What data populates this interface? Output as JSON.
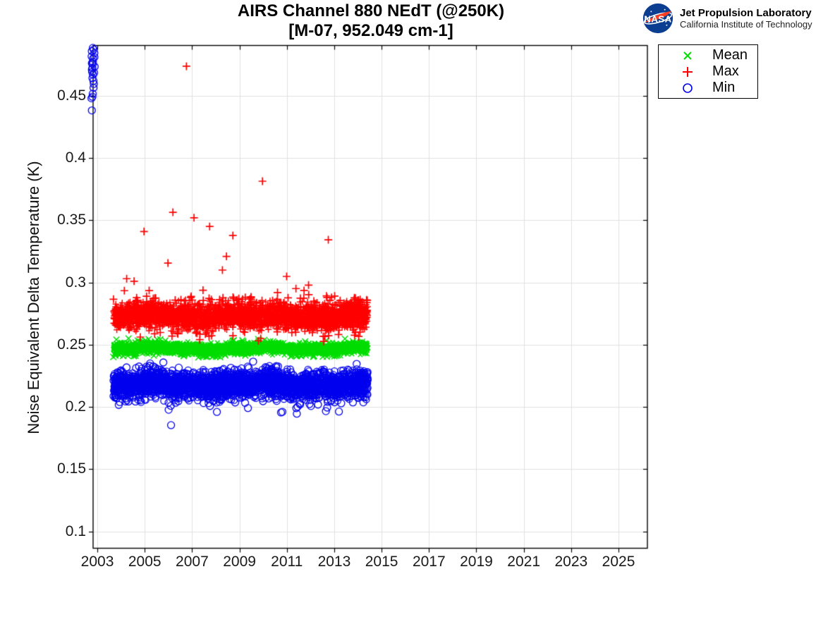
{
  "figure": {
    "title_line1": "AIRS Channel 880 NEdT (@250K)",
    "title_line2": "[M-07, 952.049 cm-1]",
    "logo": {
      "nasa_text": "NASA",
      "org_line1": "Jet Propulsion Laboratory",
      "org_line2": "California Institute of Technology",
      "nasa_blue": "#0b3d91",
      "nasa_red": "#fc3d21"
    }
  },
  "chart_data": {
    "type": "scatter",
    "title": "AIRS Channel 880 NEdT (@250K)",
    "subtitle": "[M-07, 952.049 cm-1]",
    "xlabel": "",
    "ylabel": "Noise Equivalent Delta Temperature (K)",
    "grid": true,
    "axes": {
      "xlim": [
        2002.82,
        2026.22
      ],
      "ylim": [
        0.0864,
        0.4905
      ],
      "xtick_values": [
        2003,
        2005,
        2007,
        2009,
        2011,
        2013,
        2015,
        2017,
        2019,
        2021,
        2023,
        2025
      ],
      "xtick_labels": [
        "2003",
        "2005",
        "2007",
        "2009",
        "2011",
        "2013",
        "2015",
        "2017",
        "2019",
        "2021",
        "2023",
        "2025"
      ],
      "ytick_values": [
        0.1,
        0.15,
        0.2,
        0.25,
        0.3,
        0.35,
        0.4,
        0.45
      ],
      "ytick_labels": [
        "0.1",
        "0.15",
        "0.2",
        "0.25",
        "0.3",
        "0.35",
        "0.4",
        "0.45"
      ],
      "grid_color": "#e0e0e0",
      "axis_color": "#000000",
      "tick_label_color": "#1a1a1a"
    },
    "legend": {
      "position": "outside upper right",
      "entries": [
        {
          "label": "Mean",
          "marker": "x",
          "color": "#00dd00"
        },
        {
          "label": "Max",
          "marker": "+",
          "color": "#ff0000"
        },
        {
          "label": "Min",
          "marker": "o",
          "color": "#0000ee"
        }
      ]
    },
    "series": [
      {
        "name": "Mean",
        "marker": "x",
        "color": "#00dd00",
        "band": {
          "x_start": 2003.67,
          "x_end": 2014.42,
          "n": 3000,
          "center": 0.247,
          "sigma": 0.00225,
          "drift_amp": 0.0011,
          "tail_up_frac": 0.004,
          "tail_up_max": 0.004,
          "tail_down_frac": 0.004,
          "tail_down_max": 0.004,
          "seed": 101
        },
        "outliers": []
      },
      {
        "name": "Max",
        "marker": "+",
        "color": "#ff0000",
        "band": {
          "x_start": 2003.67,
          "x_end": 2014.42,
          "n": 3400,
          "center": 0.273,
          "sigma": 0.0052,
          "drift_amp": 0.0013,
          "tail_up_frac": 0.03,
          "tail_up_max": 0.023,
          "tail_down_frac": 0.02,
          "tail_down_max": 0.011,
          "seed": 202
        },
        "outliers": [
          [
            2004.55,
            0.301
          ],
          [
            2004.97,
            0.341
          ],
          [
            2005.98,
            0.3156
          ],
          [
            2006.19,
            0.3564
          ],
          [
            2006.76,
            0.4738
          ],
          [
            2007.08,
            0.352
          ],
          [
            2007.74,
            0.345
          ],
          [
            2008.28,
            0.31
          ],
          [
            2008.45,
            0.321
          ],
          [
            2008.72,
            0.3378
          ],
          [
            2009.97,
            0.3814
          ],
          [
            2010.99,
            0.3049
          ],
          [
            2012.75,
            0.3343
          ]
        ]
      },
      {
        "name": "Min",
        "marker": "o",
        "color": "#0000ee",
        "band": {
          "x_start": 2003.67,
          "x_end": 2014.42,
          "n": 3000,
          "center": 0.218,
          "sigma": 0.0055,
          "drift_amp": 0.0013,
          "tail_up_frac": 0.008,
          "tail_up_max": 0.008,
          "tail_down_frac": 0.03,
          "tail_down_max": 0.014,
          "seed": 303
        },
        "outliers": [
          [
            2006.01,
            0.1977
          ],
          [
            2010.81,
            0.196
          ]
        ],
        "left_cluster": {
          "x": 2002.82,
          "values": [
            0.4895,
            0.4872,
            0.4853,
            0.4838,
            0.4824,
            0.481,
            0.4796,
            0.4783,
            0.477,
            0.4757,
            0.4744,
            0.473,
            0.4716,
            0.4701,
            0.4685,
            0.4668,
            0.4648,
            0.4625,
            0.4597,
            0.4563,
            0.4525,
            0.4492,
            0.4472,
            0.4375
          ]
        }
      }
    ]
  }
}
